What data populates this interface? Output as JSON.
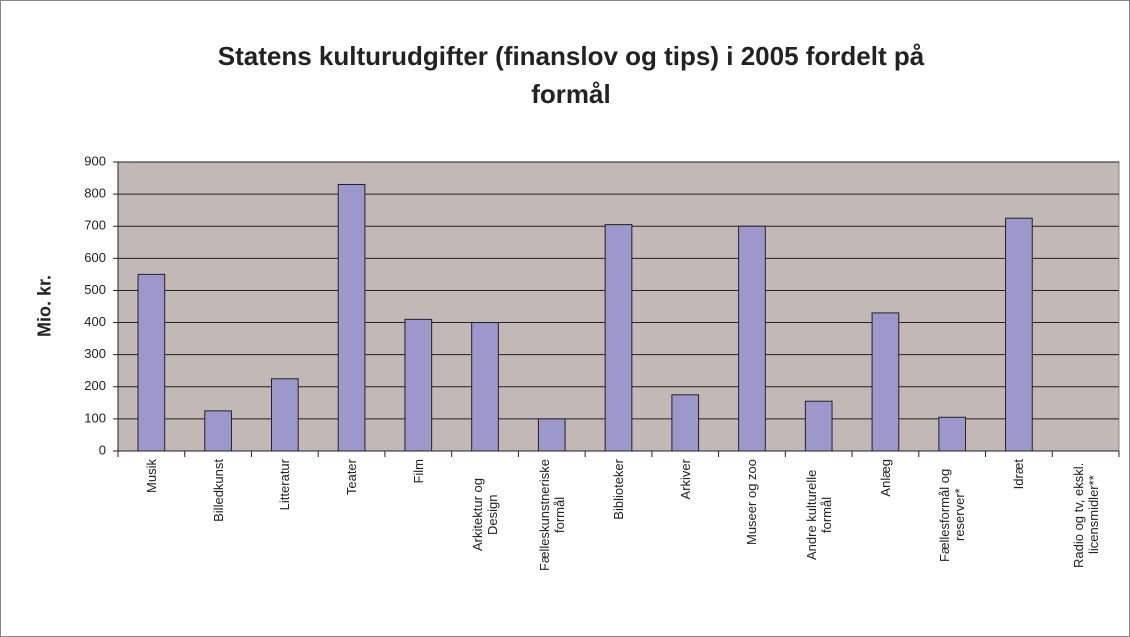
{
  "chart_data": {
    "type": "bar",
    "title": "Statens kulturudgifter (finanslov og tips) i 2005 fordelt på formål",
    "ylabel": "Mio. kr.",
    "categories": [
      "Musik",
      "Billedkunst",
      "Litteratur",
      "Teater",
      "Film",
      "Arkitektur og Design",
      "Fælleskunstneriske formål",
      "Biblioteker",
      "Arkiver",
      "Museer og zoo",
      "Andre kulturelle formål",
      "Anlæg",
      "Fællesformål og reserver*",
      "Idræt",
      "Radio og tv, ekskl. licensmidler**"
    ],
    "values": [
      550,
      125,
      225,
      830,
      410,
      400,
      100,
      705,
      175,
      700,
      155,
      430,
      105,
      725,
      null
    ],
    "color": "#9c98cc",
    "ylim": [
      0,
      900
    ],
    "yticks": [
      0,
      100,
      200,
      300,
      400,
      500,
      600,
      700,
      800,
      900
    ],
    "grid": true
  }
}
